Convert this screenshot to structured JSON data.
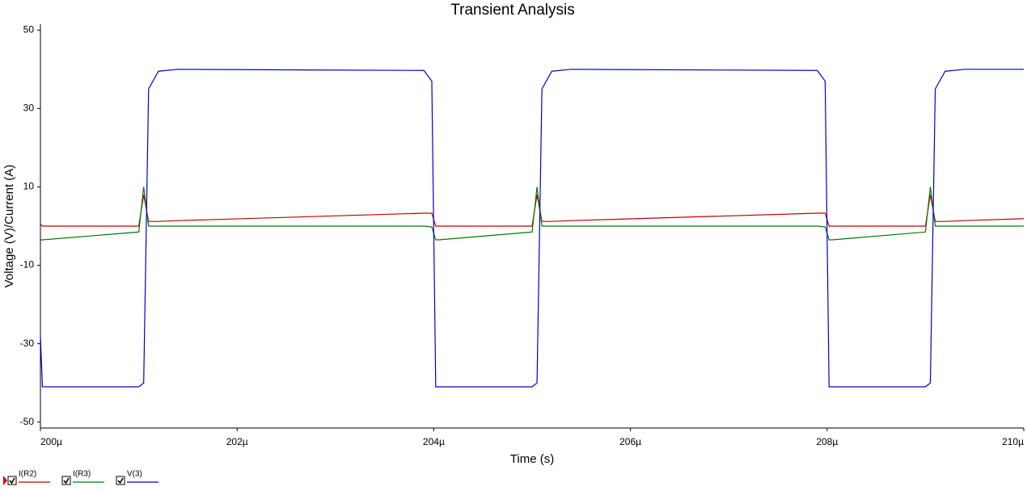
{
  "chart_data": {
    "type": "line",
    "title": "Transient Analysis",
    "x_label": "Time (s)",
    "y_label": "Voltage (V)/Current (A)",
    "x": [
      0.0002,
      0.00020002,
      0.000201,
      0.00020105,
      0.0002011,
      0.0002012,
      0.0002014,
      0.0002039,
      0.00020398,
      0.00020402,
      0.00020405,
      0.000205,
      0.00020505,
      0.0002051,
      0.0002052,
      0.0002054,
      0.0002079,
      0.00020798,
      0.00020802,
      0.00020805,
      0.000209,
      0.00020905,
      0.0002091,
      0.0002092,
      0.0002094,
      0.00021
    ],
    "series": [
      {
        "name": "I(R2)",
        "color": "#c00000",
        "values": [
          0.5,
          0,
          0,
          8,
          1.2,
          1.2,
          1.4,
          3.3,
          3.3,
          0,
          0,
          0,
          8,
          1.2,
          1.2,
          1.4,
          3.3,
          3.3,
          0,
          0,
          0,
          8,
          1.2,
          1.2,
          1.4,
          1.9
        ]
      },
      {
        "name": "I(R3)",
        "color": "#007a00",
        "values": [
          -3.5,
          -3.5,
          -1.5,
          10,
          0,
          0,
          0,
          0,
          -0.2,
          -3.5,
          -3.5,
          -1.5,
          10,
          0,
          0,
          0,
          0,
          -0.2,
          -3.5,
          -3.5,
          -1.5,
          10,
          0,
          0,
          0,
          0
        ]
      },
      {
        "name": "V(3)",
        "color": "#0000cc",
        "values": [
          -28,
          -41,
          -41,
          -40,
          35,
          39.5,
          40,
          39.7,
          37,
          -41,
          -41,
          -41,
          -40,
          35,
          39.5,
          40,
          39.7,
          37,
          -41,
          -41,
          -41,
          -40,
          35,
          39.5,
          40,
          40
        ]
      }
    ],
    "xlim": [
      0.0002,
      0.00021
    ],
    "xticks": [
      {
        "value": 0.0002,
        "label": "200µ"
      },
      {
        "value": 0.000202,
        "label": "202µ"
      },
      {
        "value": 0.000204,
        "label": "204µ"
      },
      {
        "value": 0.000206,
        "label": "206µ"
      },
      {
        "value": 0.000208,
        "label": "208µ"
      },
      {
        "value": 0.00021,
        "label": "210µ"
      }
    ],
    "ylim": [
      -51.5,
      51.5
    ],
    "yticks": [
      50,
      30,
      10,
      -10,
      -30,
      -50
    ],
    "grid": false
  }
}
